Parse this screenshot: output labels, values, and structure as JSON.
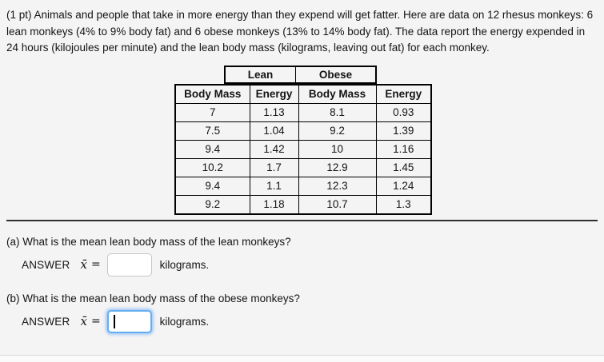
{
  "page": {
    "background": "#f4f4f5",
    "text_color": "#141414",
    "focus_ring_color": "#67aef0",
    "table_border_color": "#000000"
  },
  "problem": {
    "intro": "(1 pt) Animals and people that take in more energy than they expend will get fatter. Here are data on 12 rhesus monkeys: 6 lean monkeys (4% to 9% body fat) and 6 obese monkeys (13% to 14% body fat). The data report the energy expended in 24 hours (kilojoules per minute) and the lean body mass (kilograms, leaving out fat) for each monkey."
  },
  "table": {
    "group_headers": [
      "Lean",
      "Obese"
    ],
    "column_headers": [
      "Body Mass",
      "Energy",
      "Body Mass",
      "Energy"
    ],
    "rows": [
      [
        "7",
        "1.13",
        "8.1",
        "0.93"
      ],
      [
        "7.5",
        "1.04",
        "9.2",
        "1.39"
      ],
      [
        "9.4",
        "1.42",
        "10",
        "1.16"
      ],
      [
        "10.2",
        "1.7",
        "12.9",
        "1.45"
      ],
      [
        "9.4",
        "1.1",
        "12.3",
        "1.24"
      ],
      [
        "9.2",
        "1.18",
        "10.7",
        "1.3"
      ]
    ]
  },
  "questions": {
    "a": {
      "prompt": "(a) What is the mean lean body mass of the lean monkeys?",
      "answer_label": "ANSWER",
      "xbar": "x̄",
      "equals": "=",
      "input_value": "",
      "unit": "kilograms."
    },
    "b": {
      "prompt": "(b) What is the mean lean body mass of the obese monkeys?",
      "answer_label": "ANSWER",
      "xbar": "x̄",
      "equals": "=",
      "input_value": "",
      "unit": "kilograms."
    }
  }
}
